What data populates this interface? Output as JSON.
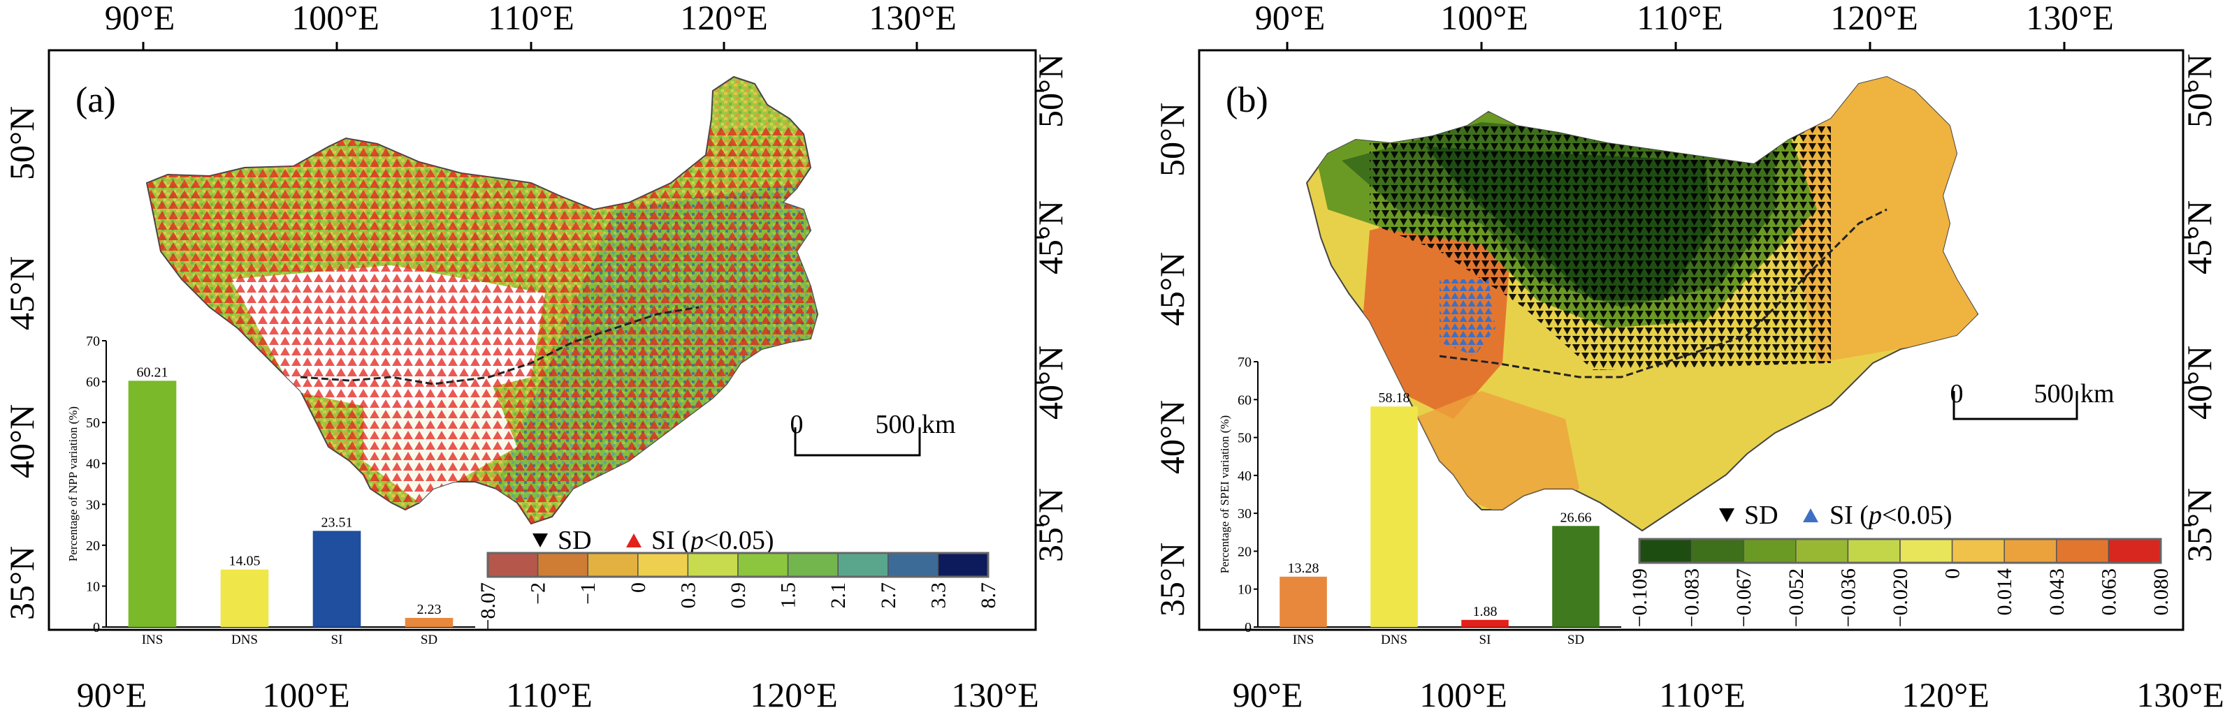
{
  "panels": [
    {
      "id": "a",
      "label": "(a)",
      "top_lon_labels": [
        "90°E",
        "100°E",
        "110°E",
        "120°E",
        "130°E"
      ],
      "bottom_lon_labels": [
        "90°E",
        "100°E",
        "110°E",
        "120°E",
        "130°E"
      ],
      "left_lat_labels": [
        "50°N",
        "45°N",
        "40°N",
        "35°N"
      ],
      "right_lat_labels": [
        "50°N",
        "45°N",
        "40°N",
        "35°N"
      ],
      "legend": {
        "sd_label": "SD",
        "si_prefix": "SI (",
        "si_italic": "p",
        "si_suffix": "<0.05)",
        "sd_color": "#000000",
        "si_color": "#e3201b"
      },
      "scale_bar": {
        "zero": "0",
        "dist": "500 km"
      },
      "colorbar": {
        "ticks": [
          "−8.07",
          "−2",
          "−1",
          "0",
          "0.3",
          "0.9",
          "1.5",
          "2.1",
          "2.7",
          "3.3",
          "8.7"
        ],
        "colors": [
          "#b5574b",
          "#cf7d35",
          "#e3b13f",
          "#efd04e",
          "#c8db4e",
          "#8cc63e",
          "#74b64e",
          "#5aa68c",
          "#3d6b97",
          "#0d1a5c"
        ]
      },
      "inset_chart": {
        "chart_data": {
          "type": "bar",
          "categories": [
            "INS",
            "DNS",
            "SI",
            "SD"
          ],
          "values": [
            60.21,
            14.05,
            23.51,
            2.23
          ],
          "value_labels": [
            "60.21",
            "14.05",
            "23.51",
            "2.23"
          ],
          "colors": [
            "#79b92a",
            "#efe74a",
            "#1f4f9e",
            "#e8883d"
          ],
          "ylabel": "Percentage of NPP variation (%)",
          "ylim": [
            0,
            70
          ],
          "yticks": [
            "0",
            "10",
            "20",
            "30",
            "40",
            "50",
            "60",
            "70"
          ]
        }
      }
    },
    {
      "id": "b",
      "label": "(b)",
      "top_lon_labels": [
        "90°E",
        "100°E",
        "110°E",
        "120°E",
        "130°E"
      ],
      "bottom_lon_labels": [
        "90°E",
        "100°E",
        "110°E",
        "120°E",
        "130°E"
      ],
      "left_lat_labels": [
        "50°N",
        "45°N",
        "40°N",
        "35°N"
      ],
      "right_lat_labels": [
        "50°N",
        "45°N",
        "40°N",
        "35°N"
      ],
      "legend": {
        "sd_label": "SD",
        "si_prefix": "SI (",
        "si_italic": "p",
        "si_suffix": "<0.05)",
        "sd_color": "#000000",
        "si_color": "#3f6fc4"
      },
      "scale_bar": {
        "zero": "0",
        "dist": "500 km"
      },
      "colorbar": {
        "ticks": [
          "−0.109",
          "−0.083",
          "−0.067",
          "−0.052",
          "−0.036",
          "−0.020",
          "0",
          "0.014",
          "0.043",
          "0.063",
          "0.080"
        ],
        "colors": [
          "#1e4d12",
          "#3e6f1b",
          "#6b9a24",
          "#98b834",
          "#c3d64a",
          "#e8e55a",
          "#f0c24a",
          "#eca23c",
          "#e3762f",
          "#d8271f"
        ]
      },
      "inset_chart": {
        "chart_data": {
          "type": "bar",
          "categories": [
            "INS",
            "DNS",
            "SI",
            "SD"
          ],
          "values": [
            13.28,
            58.18,
            1.88,
            26.66
          ],
          "value_labels": [
            "13.28",
            "58.18",
            "1.88",
            "26.66"
          ],
          "colors": [
            "#e8883d",
            "#efe74a",
            "#e3201b",
            "#3f7a1f"
          ],
          "ylabel": "Percentage of SPEI variation (%)",
          "ylim": [
            0,
            70
          ],
          "yticks": [
            "0",
            "10",
            "20",
            "30",
            "40",
            "50",
            "60",
            "70"
          ]
        }
      }
    }
  ]
}
